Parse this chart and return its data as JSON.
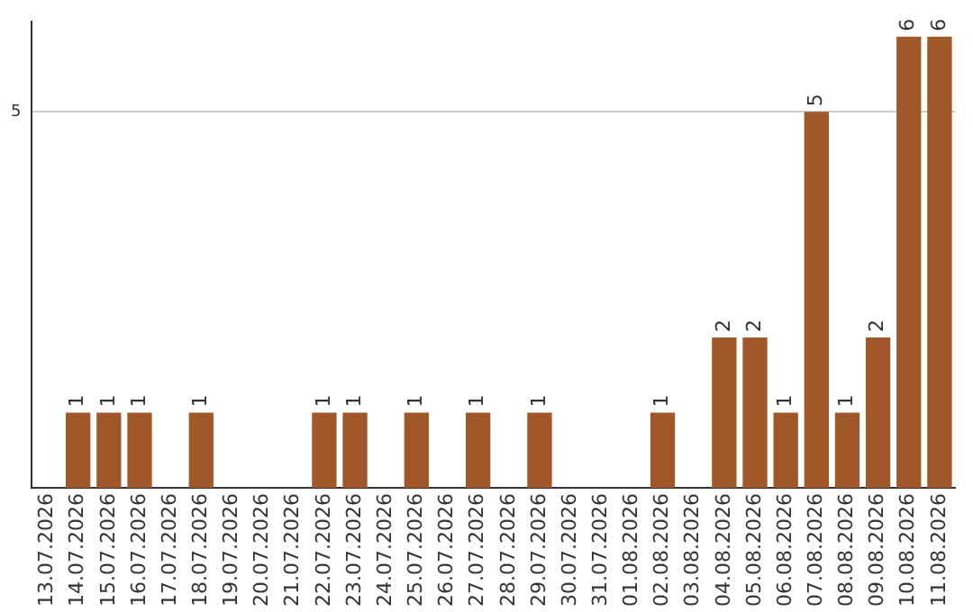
{
  "chart_data": {
    "type": "bar",
    "categories": [
      "13.07.2026",
      "14.07.2026",
      "15.07.2026",
      "16.07.2026",
      "17.07.2026",
      "18.07.2026",
      "19.07.2026",
      "20.07.2026",
      "21.07.2026",
      "22.07.2026",
      "23.07.2026",
      "24.07.2026",
      "25.07.2026",
      "26.07.2026",
      "27.07.2026",
      "28.07.2026",
      "29.07.2026",
      "30.07.2026",
      "31.07.2026",
      "01.08.2026",
      "02.08.2026",
      "03.08.2026",
      "04.08.2026",
      "05.08.2026",
      "06.08.2026",
      "07.08.2026",
      "08.08.2026",
      "09.08.2026",
      "10.08.2026",
      "11.08.2026"
    ],
    "values": [
      null,
      1,
      1,
      1,
      null,
      1,
      null,
      null,
      null,
      1,
      1,
      null,
      1,
      null,
      1,
      null,
      1,
      null,
      null,
      null,
      1,
      null,
      2,
      2,
      1,
      5,
      1,
      2,
      6,
      6
    ],
    "color": "#a0582a",
    "ylim": [
      0,
      6.2
    ],
    "yticks": [
      5
    ],
    "grid": "y",
    "data_labels": true,
    "legend": false
  }
}
